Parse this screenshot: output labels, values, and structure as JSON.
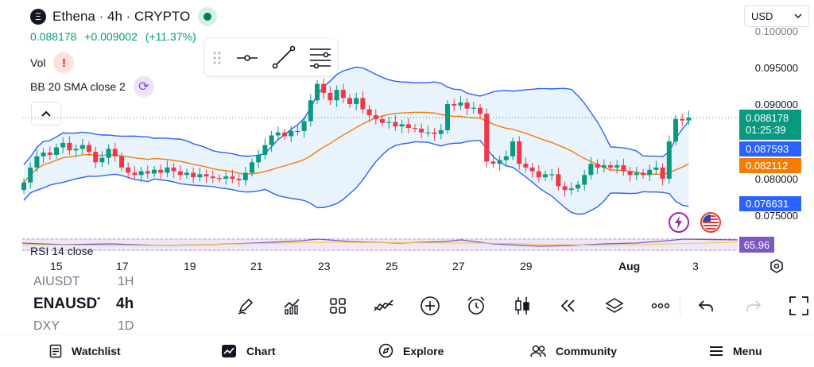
{
  "header": {
    "title": "Ethena · 4h · CRYPTO",
    "price": "0.088178",
    "change": "+0.009002",
    "change_pct": "(+11.37%)",
    "volume_label": "Vol",
    "bb_label": "BB 20 SMA close 2",
    "currency": "USD"
  },
  "chart_data": {
    "type": "candlestick",
    "x_ticks": [
      "15",
      "17",
      "19",
      "21",
      "23",
      "25",
      "27",
      "29",
      "Aug",
      "3"
    ],
    "y_ticks": [
      "0.100000",
      "0.095000",
      "0.090000",
      "0.080000",
      "0.075000"
    ],
    "price_labels": [
      {
        "value": "0.088178",
        "sub": "01:25:39",
        "color": "#089981"
      },
      {
        "value": "0.087593",
        "color": "#2962ff"
      },
      {
        "value": "0.082112",
        "color": "#f57c00"
      },
      {
        "value": "0.076631",
        "color": "#2962ff"
      }
    ],
    "rsi_label": "RSI 14 close",
    "rsi_value": "65.96",
    "closes": [
      0.0795,
      0.0815,
      0.083,
      0.0835,
      0.0832,
      0.0842,
      0.0848,
      0.0838,
      0.084,
      0.0845,
      0.0836,
      0.0822,
      0.0828,
      0.084,
      0.083,
      0.0815,
      0.0808,
      0.0805,
      0.081,
      0.0807,
      0.0812,
      0.0808,
      0.0815,
      0.081,
      0.0805,
      0.0808,
      0.0802,
      0.0806,
      0.0803,
      0.0801,
      0.08,
      0.0803,
      0.08,
      0.0798,
      0.0808,
      0.0822,
      0.0832,
      0.0845,
      0.0858,
      0.0862,
      0.0857,
      0.0864,
      0.0864,
      0.0877,
      0.0905,
      0.0927,
      0.0915,
      0.0905,
      0.0919,
      0.0908,
      0.09,
      0.0908,
      0.0893,
      0.0885,
      0.088,
      0.0875,
      0.0876,
      0.087,
      0.0873,
      0.0868,
      0.0867,
      0.0862,
      0.0862,
      0.086,
      0.0865,
      0.09,
      0.0898,
      0.0902,
      0.0894,
      0.0895,
      0.0887,
      0.0823,
      0.082,
      0.0825,
      0.083,
      0.085,
      0.082,
      0.0815,
      0.081,
      0.0802,
      0.0806,
      0.0806,
      0.079,
      0.0785,
      0.0787,
      0.0792,
      0.0805,
      0.082,
      0.0815,
      0.0818,
      0.0815,
      0.0818,
      0.081,
      0.0805,
      0.0808,
      0.0805,
      0.0812,
      0.0815,
      0.08,
      0.085,
      0.088,
      0.0878,
      0.0882
    ]
  },
  "symbols": {
    "prev": "AIUSDT",
    "prev_tf": "1H",
    "current": "ENAUSDT",
    "current_tf": "4h",
    "next": "DXY",
    "next_tf": "1D"
  },
  "nav": {
    "watchlist": "Watchlist",
    "chart": "Chart",
    "explore": "Explore",
    "community": "Community",
    "menu": "Menu"
  }
}
